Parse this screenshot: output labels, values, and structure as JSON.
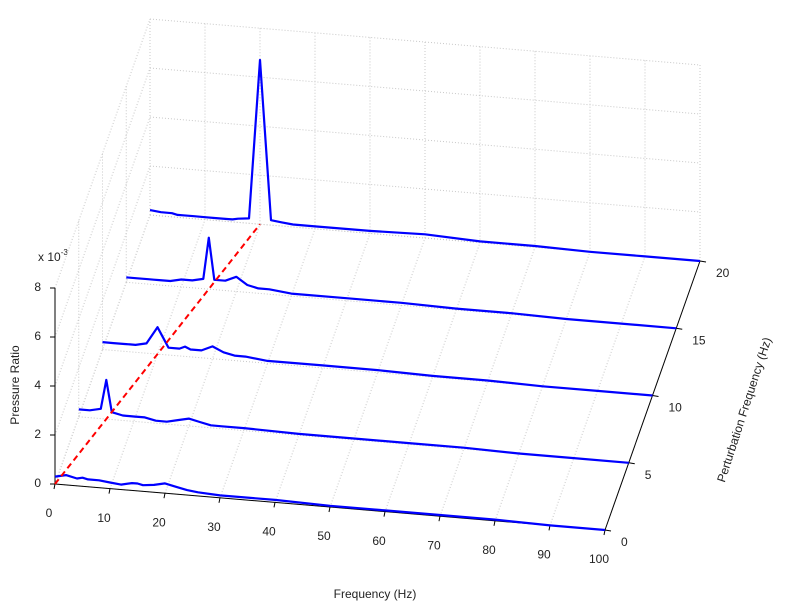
{
  "chart_data": {
    "type": "waterfall",
    "xlabel": "Frequency (Hz)",
    "ylabel": "Perturbation Frequency (Hz)",
    "zlabel": "Pressure Ratio",
    "z_multiplier": {
      "base": "x 10",
      "exponent": "-3"
    },
    "xlim": [
      0,
      100
    ],
    "xticks": [
      0,
      10,
      20,
      30,
      40,
      50,
      60,
      70,
      80,
      90,
      100
    ],
    "ylim": [
      0,
      20
    ],
    "yticks": [
      0,
      5,
      10,
      15,
      20
    ],
    "zlim": [
      0,
      8
    ],
    "zticks": [
      0,
      2,
      4,
      6,
      8
    ],
    "grid": true,
    "x": [
      0,
      2,
      4,
      5,
      6,
      8,
      10,
      12,
      14,
      15,
      16,
      18,
      20,
      22,
      24,
      26,
      30,
      40,
      50,
      60,
      70,
      80,
      90,
      100
    ],
    "series": [
      {
        "y": 0,
        "color": "#0000ff",
        "values": [
          0.3,
          0.4,
          0.3,
          0.35,
          0.3,
          0.3,
          0.25,
          0.2,
          0.3,
          0.3,
          0.25,
          0.3,
          0.4,
          0.3,
          0.2,
          0.15,
          0.1,
          0.1,
          0.05,
          0.05,
          0.05,
          0.05,
          0.0,
          0.0
        ]
      },
      {
        "y": 5,
        "color": "#0000ff",
        "values": [
          0.3,
          0.3,
          0.4,
          1.6,
          0.3,
          0.2,
          0.2,
          0.2,
          0.1,
          0.1,
          0.1,
          0.2,
          0.3,
          0.2,
          0.1,
          0.1,
          0.1,
          0.05,
          0.05,
          0.05,
          0.05,
          0.0,
          0.0,
          0.0
        ]
      },
      {
        "y": 10,
        "color": "#0000ff",
        "values": [
          0.3,
          0.3,
          0.3,
          0.3,
          0.3,
          0.4,
          1.1,
          0.3,
          0.3,
          0.4,
          0.3,
          0.3,
          0.5,
          0.3,
          0.2,
          0.2,
          0.1,
          0.1,
          0.1,
          0.05,
          0.05,
          0.0,
          0.0,
          0.0
        ]
      },
      {
        "y": 15,
        "color": "#0000ff",
        "values": [
          0.2,
          0.2,
          0.2,
          0.2,
          0.2,
          0.2,
          0.3,
          0.3,
          0.4,
          2.1,
          0.4,
          0.4,
          0.6,
          0.3,
          0.2,
          0.2,
          0.1,
          0.1,
          0.1,
          0.05,
          0.05,
          0.0,
          0.0,
          0.0
        ]
      },
      {
        "y": 20,
        "color": "#0000ff",
        "values": [
          0.2,
          0.15,
          0.15,
          0.1,
          0.1,
          0.1,
          0.1,
          0.1,
          0.1,
          0.1,
          0.15,
          0.2,
          6.7,
          0.2,
          0.15,
          0.1,
          0.1,
          0.1,
          0.15,
          0.05,
          0.05,
          0.0,
          0.0,
          0.0
        ]
      }
    ],
    "reference_line": {
      "x": [
        0,
        20
      ],
      "y": [
        0,
        20
      ],
      "color": "#ff0000"
    }
  }
}
